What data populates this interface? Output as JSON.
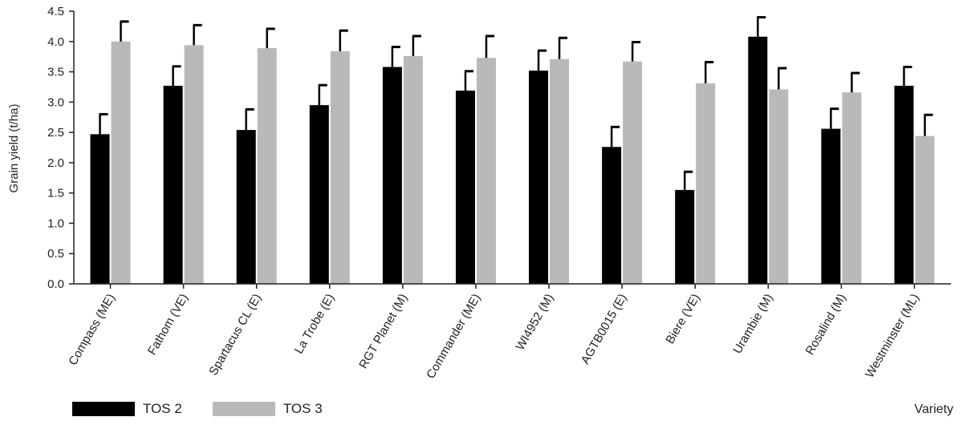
{
  "chart_data": {
    "type": "bar",
    "ylabel": "Grain yield (t/ha)",
    "xlabel": "Variety",
    "ylim": [
      0,
      4.5
    ],
    "yticks": [
      "0.0",
      "0.5",
      "1.0",
      "1.5",
      "2.0",
      "2.5",
      "3.0",
      "3.5",
      "4.0",
      "4.5"
    ],
    "categories": [
      "Compass (ME)",
      "Fathom (VE)",
      "Spartacus CL (E)",
      "La Trobe (E)",
      "RGT Planet (M)",
      "Commander (ME)",
      "WI4952 (M)",
      "AGTB0015 (E)",
      "Biere (VE)",
      "Urambie (M)",
      "Rosalind (M)",
      "Westminster (ML)"
    ],
    "series": [
      {
        "name": "TOS 2",
        "color": "#000000",
        "values": [
          2.47,
          3.27,
          2.54,
          2.95,
          3.58,
          3.19,
          3.52,
          2.26,
          1.55,
          4.08,
          2.56,
          3.27
        ],
        "error": [
          0.33,
          0.32,
          0.34,
          0.33,
          0.33,
          0.32,
          0.33,
          0.33,
          0.3,
          0.32,
          0.33,
          0.31
        ]
      },
      {
        "name": "TOS 3",
        "color": "#b8b9bb",
        "values": [
          4.0,
          3.94,
          3.89,
          3.84,
          3.76,
          3.73,
          3.71,
          3.67,
          3.31,
          3.21,
          3.16,
          2.44
        ],
        "error": [
          0.33,
          0.33,
          0.32,
          0.34,
          0.33,
          0.36,
          0.35,
          0.32,
          0.35,
          0.35,
          0.32,
          0.35
        ]
      }
    ],
    "legend_position": "bottom-left",
    "grid": false
  }
}
